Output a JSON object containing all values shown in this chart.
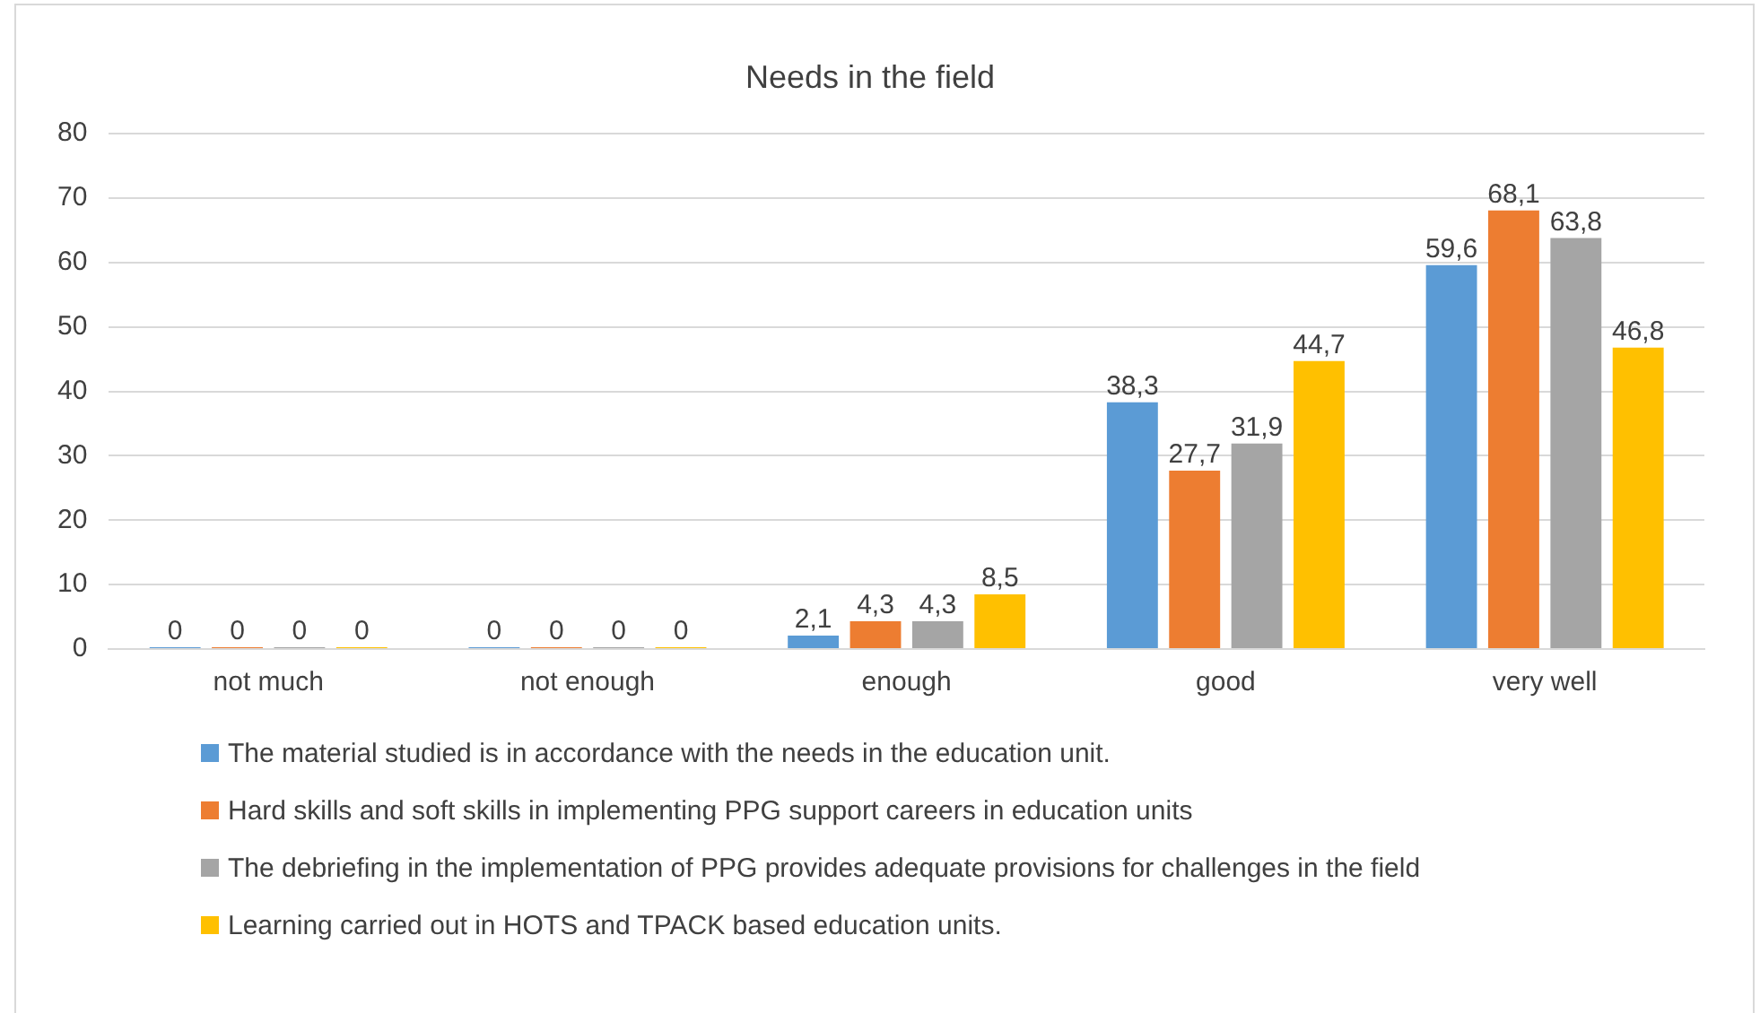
{
  "chart_data": {
    "type": "bar",
    "title": "Needs in the field",
    "categories": [
      "not much",
      "not enough",
      "enough",
      "good",
      "very well"
    ],
    "series": [
      {
        "name": "The material studied is in accordance with the needs in the education unit.",
        "color": "#5b9bd5",
        "values": [
          0,
          0,
          2.1,
          38.3,
          59.6
        ],
        "value_labels": [
          "0",
          "0",
          "2,1",
          "38,3",
          "59,6"
        ]
      },
      {
        "name": "Hard skills and soft skills in implementing PPG support careers in education units",
        "color": "#ed7d31",
        "values": [
          0,
          0,
          4.3,
          27.7,
          68.1
        ],
        "value_labels": [
          "0",
          "0",
          "4,3",
          "27,7",
          "68,1"
        ]
      },
      {
        "name": "The debriefing in the implementation of PPG provides adequate provisions for challenges in the field",
        "color": "#a5a5a5",
        "values": [
          0,
          0,
          4.3,
          31.9,
          63.8
        ],
        "value_labels": [
          "0",
          "0",
          "4,3",
          "31,9",
          "63,8"
        ]
      },
      {
        "name": "Learning carried out in HOTS and TPACK based education units.",
        "color": "#ffc000",
        "values": [
          0,
          0,
          8.5,
          44.7,
          46.8
        ],
        "value_labels": [
          "0",
          "0",
          "8,5",
          "44,7",
          "46,8"
        ]
      }
    ],
    "ylim": [
      0,
      80
    ],
    "yticks": [
      0,
      10,
      20,
      30,
      40,
      50,
      60,
      70,
      80
    ],
    "grid": "y",
    "legend": "bottom"
  }
}
